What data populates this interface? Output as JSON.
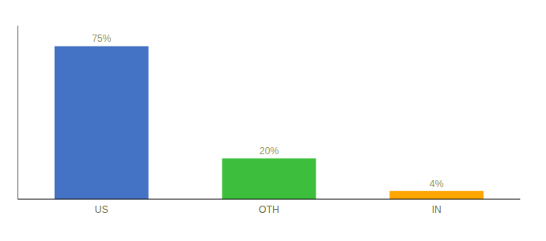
{
  "chart_data": {
    "type": "bar",
    "categories": [
      "US",
      "OTH",
      "IN"
    ],
    "values": [
      75,
      20,
      4
    ],
    "value_labels": [
      "75%",
      "20%",
      "4%"
    ],
    "colors": [
      "#4472C4",
      "#3DBF3D",
      "#FFA500"
    ],
    "ylim": [
      0,
      85
    ],
    "data_labels": true,
    "tick_labels": "x"
  }
}
